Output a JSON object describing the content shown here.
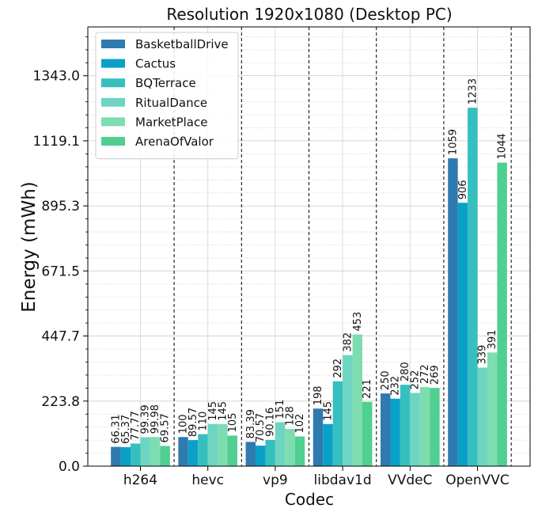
{
  "chart_data": {
    "type": "bar",
    "title": "Resolution 1920x1080 (Desktop PC)",
    "xlabel": "Codec",
    "ylabel": "Energy (mWh)",
    "categories": [
      "h264",
      "hevc",
      "vp9",
      "libdav1d",
      "VVdeC",
      "OpenVVC"
    ],
    "yticks": [
      "0.0",
      "223.8",
      "447.7",
      "671.5",
      "895.3",
      "1119.1",
      "1343.0"
    ],
    "ylim": [
      0,
      1511
    ],
    "grid": true,
    "legend_position": "top-left",
    "series": [
      {
        "name": "BasketballDrive",
        "color": "#2f7aae",
        "values": [
          66.31,
          100,
          83.39,
          198,
          250,
          1059
        ],
        "labels": [
          "66.31",
          "100",
          "83.39",
          "198",
          "250",
          "1059"
        ]
      },
      {
        "name": "Cactus",
        "color": "#0aa0c8",
        "values": [
          65.37,
          89.57,
          70.57,
          145,
          232,
          906
        ],
        "labels": [
          "65.37",
          "89.57",
          "70.57",
          "145",
          "232",
          "906"
        ]
      },
      {
        "name": "BQTerrace",
        "color": "#36bfbf",
        "values": [
          77.77,
          110,
          90.16,
          292,
          280,
          1233
        ],
        "labels": [
          "77.77",
          "110",
          "90.16",
          "292",
          "280",
          "1233"
        ]
      },
      {
        "name": "RitualDance",
        "color": "#6dd5c2",
        "values": [
          99.39,
          145,
          151,
          382,
          252,
          339
        ],
        "labels": [
          "99.39",
          "145",
          "151",
          "382",
          "252",
          "339"
        ]
      },
      {
        "name": "MarketPlace",
        "color": "#7ddcb0",
        "values": [
          99.98,
          145,
          128,
          453,
          272,
          391
        ],
        "labels": [
          "99.98",
          "145",
          "128",
          "453",
          "272",
          "391"
        ]
      },
      {
        "name": "ArenaOfValor",
        "color": "#4fcf90",
        "values": [
          69.57,
          105,
          102,
          221,
          269,
          1044
        ],
        "labels": [
          "69.57",
          "105",
          "102",
          "221",
          "269",
          "1044"
        ]
      }
    ]
  }
}
